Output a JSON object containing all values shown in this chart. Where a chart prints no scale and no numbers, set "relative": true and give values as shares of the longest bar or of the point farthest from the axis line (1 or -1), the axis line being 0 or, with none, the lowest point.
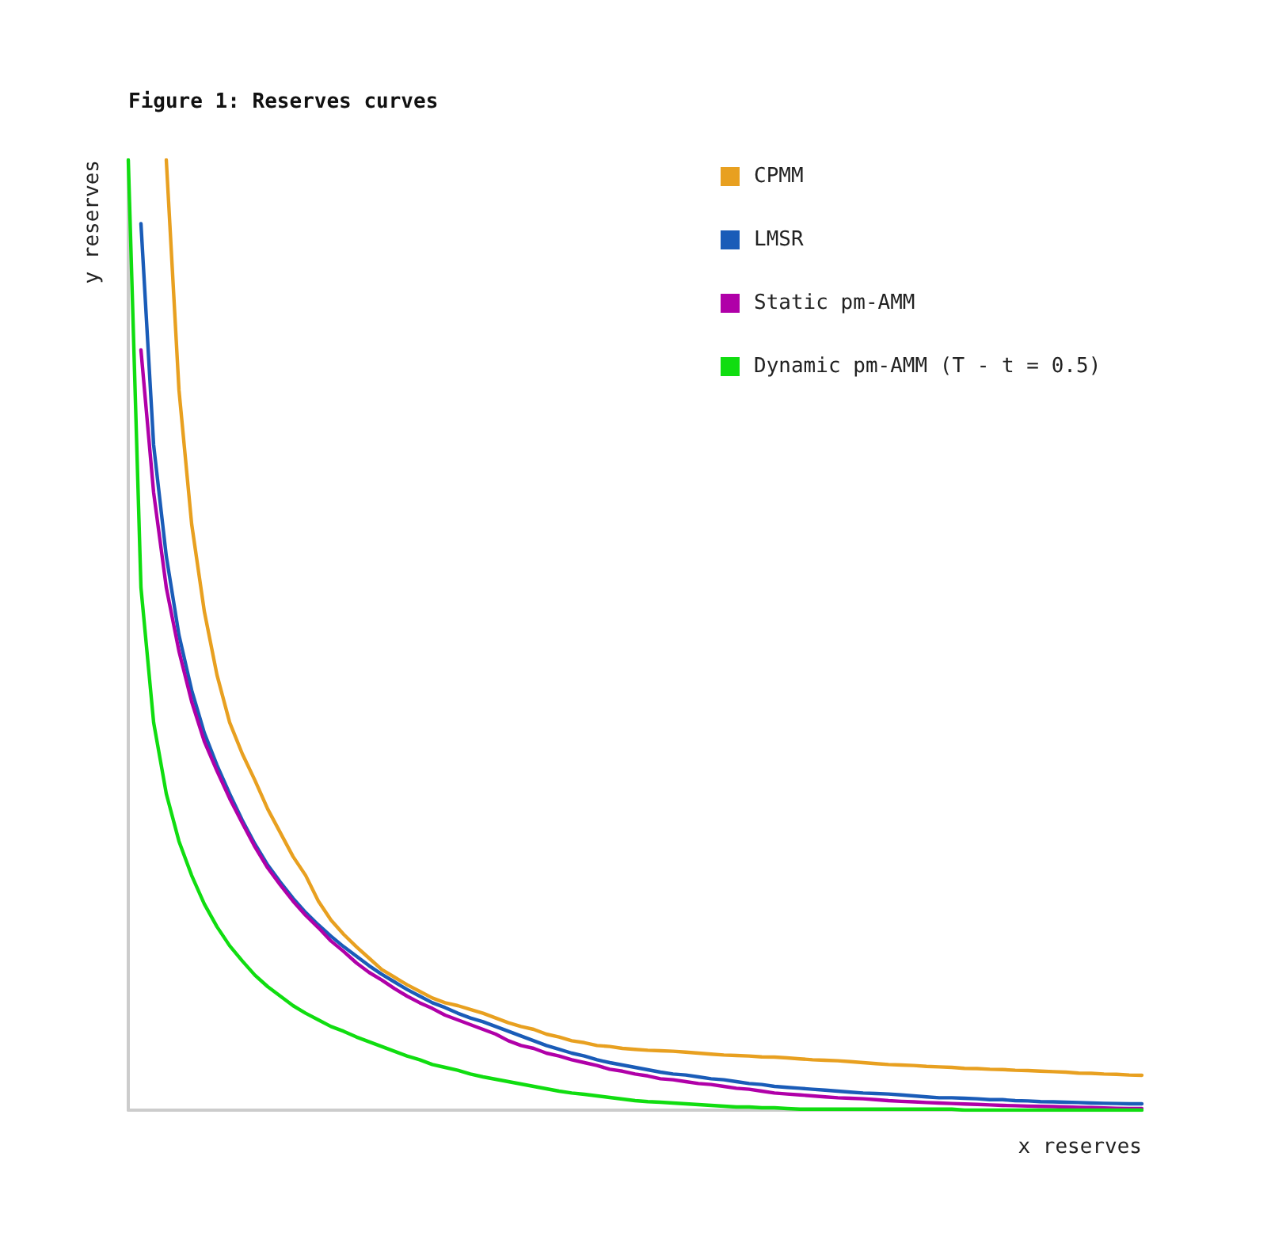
{
  "chart_data": {
    "type": "line",
    "title": "Figure 1: Reserves curves",
    "xlabel": "x reserves",
    "ylabel": "y reserves",
    "relative": true,
    "grid": false,
    "legend": "top right",
    "marker": "none",
    "line_style": "solid",
    "categories": [
      null,
      null,
      null,
      null,
      null,
      null,
      null,
      null,
      null,
      null,
      null,
      null,
      null,
      null,
      null,
      null,
      null,
      null,
      null,
      null,
      null,
      null,
      null,
      null,
      null,
      null,
      null,
      null,
      null,
      null,
      null,
      null,
      null,
      null,
      null,
      null,
      null,
      null,
      null,
      null,
      null,
      null,
      null,
      null,
      null,
      null,
      null,
      null,
      null,
      null,
      null,
      null,
      null,
      null,
      null,
      null,
      null,
      null,
      null,
      null,
      null,
      null,
      null,
      null,
      null,
      null,
      null,
      null,
      null,
      null,
      null,
      null,
      null,
      null,
      null,
      null,
      null,
      null,
      null,
      null,
      null
    ],
    "series": [
      {
        "name": "CPMM",
        "color": "#e8a020",
        "values": [
          null,
          null,
          null,
          1.0,
          0.758,
          0.617,
          0.525,
          0.458,
          0.408,
          0.375,
          0.347,
          0.317,
          0.292,
          0.267,
          0.247,
          0.22,
          0.2,
          0.185,
          0.172,
          0.16,
          0.148,
          0.14,
          0.132,
          0.125,
          0.118,
          0.113,
          0.11,
          0.106,
          0.102,
          0.097,
          0.092,
          0.088,
          0.085,
          0.08,
          0.077,
          0.073,
          0.071,
          0.068,
          0.067,
          0.065,
          0.064,
          0.063,
          0.0625,
          0.062,
          0.061,
          0.06,
          0.059,
          0.058,
          0.0575,
          0.057,
          0.056,
          0.0558,
          0.055,
          0.054,
          0.053,
          0.0525,
          0.052,
          0.051,
          0.05,
          0.049,
          0.048,
          0.0475,
          0.047,
          0.046,
          0.0455,
          0.045,
          0.044,
          0.0438,
          0.043,
          0.0427,
          0.042,
          0.0417,
          0.041,
          0.0405,
          0.04,
          0.039,
          0.0388,
          0.038,
          0.0377,
          0.037,
          0.0367
        ]
      },
      {
        "name": "LMSR",
        "color": "#1a5cb8",
        "values": [
          null,
          0.933,
          0.7,
          0.583,
          0.5,
          0.442,
          0.397,
          0.363,
          0.333,
          0.305,
          0.28,
          0.258,
          0.24,
          0.223,
          0.208,
          0.195,
          0.183,
          0.172,
          0.162,
          0.152,
          0.143,
          0.135,
          0.127,
          0.12,
          0.113,
          0.108,
          0.102,
          0.097,
          0.093,
          0.088,
          0.083,
          0.078,
          0.073,
          0.068,
          0.064,
          0.06,
          0.057,
          0.053,
          0.05,
          0.0475,
          0.045,
          0.0425,
          0.04,
          0.038,
          0.037,
          0.035,
          0.033,
          0.032,
          0.03,
          0.028,
          0.027,
          0.025,
          0.024,
          0.023,
          0.022,
          0.021,
          0.02,
          0.019,
          0.018,
          0.0175,
          0.017,
          0.016,
          0.015,
          0.014,
          0.013,
          0.013,
          0.0125,
          0.012,
          0.011,
          0.011,
          0.01,
          0.0097,
          0.009,
          0.0087,
          0.0083,
          0.008,
          0.0075,
          0.0072,
          0.007,
          0.0067,
          0.0067
        ]
      },
      {
        "name": "Static pm-AMM",
        "color": "#b000a8",
        "values": [
          null,
          0.8,
          0.65,
          0.55,
          0.483,
          0.43,
          0.388,
          0.357,
          0.328,
          0.302,
          0.277,
          0.255,
          0.237,
          0.22,
          0.205,
          0.192,
          0.178,
          0.167,
          0.155,
          0.145,
          0.137,
          0.128,
          0.12,
          0.113,
          0.107,
          0.1,
          0.095,
          0.09,
          0.085,
          0.08,
          0.073,
          0.068,
          0.065,
          0.06,
          0.057,
          0.053,
          0.05,
          0.047,
          0.043,
          0.041,
          0.038,
          0.036,
          0.033,
          0.032,
          0.03,
          0.028,
          0.027,
          0.025,
          0.023,
          0.022,
          0.02,
          0.018,
          0.017,
          0.016,
          0.015,
          0.014,
          0.013,
          0.0125,
          0.012,
          0.011,
          0.01,
          0.0093,
          0.0087,
          0.008,
          0.0075,
          0.007,
          0.0065,
          0.006,
          0.0055,
          0.005,
          0.0047,
          0.0043,
          0.004,
          0.0037,
          0.0033,
          0.003,
          0.0027,
          0.0023,
          0.002,
          0.0018,
          0.0017
        ]
      },
      {
        "name": "Dynamic pm-AMM (T - t = 0.5)",
        "color": "#10dd10",
        "values": [
          1.0,
          0.55,
          0.408,
          0.333,
          0.283,
          0.247,
          0.217,
          0.193,
          0.173,
          0.157,
          0.142,
          0.13,
          0.12,
          0.11,
          0.102,
          0.095,
          0.088,
          0.083,
          0.077,
          0.072,
          0.067,
          0.062,
          0.057,
          0.053,
          0.048,
          0.045,
          0.042,
          0.038,
          0.035,
          0.0325,
          0.03,
          0.0275,
          0.025,
          0.0225,
          0.02,
          0.018,
          0.0167,
          0.015,
          0.0133,
          0.0117,
          0.01,
          0.009,
          0.0083,
          0.0075,
          0.0067,
          0.0058,
          0.005,
          0.0042,
          0.0033,
          0.0033,
          0.0025,
          0.0025,
          0.0017,
          0.001,
          0.001,
          0.001,
          0.001,
          0.001,
          0.001,
          0.001,
          0.001,
          0.001,
          0.001,
          0.001,
          0.001,
          0.001,
          0,
          0,
          0,
          0,
          0,
          0,
          0,
          0,
          0,
          0,
          0,
          0,
          0,
          0,
          0
        ]
      }
    ]
  }
}
